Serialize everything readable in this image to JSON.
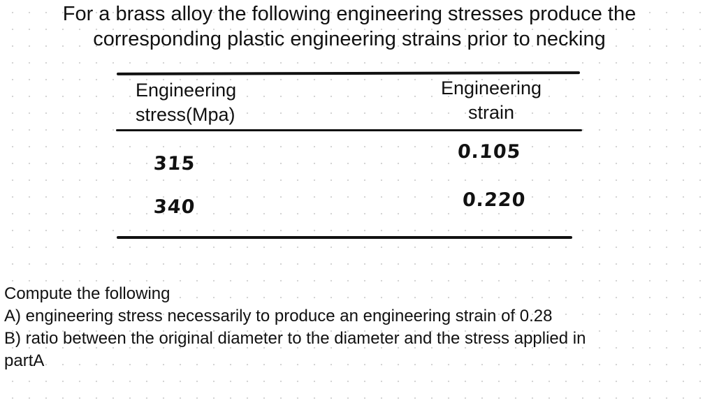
{
  "heading": {
    "line1": "For a brass alloy the following engineering stresses produce the",
    "line2": "corresponding plastic engineering strains prior to necking"
  },
  "table": {
    "columns": [
      {
        "line1": "Engineering",
        "line2": "stress(Mpa)"
      },
      {
        "line1": "Engineering",
        "line2": "strain"
      }
    ],
    "rows": [
      {
        "stress": "315",
        "strain": "0.105"
      },
      {
        "stress": "340",
        "strain": "0.220"
      }
    ]
  },
  "question": {
    "intro": "Compute the following",
    "part_a": "A) engineering stress necessarily to produce an engineering strain of 0.28",
    "part_b": "B) ratio between the original diameter to the diameter and the stress applied in",
    "part_b_cont": "partA"
  }
}
